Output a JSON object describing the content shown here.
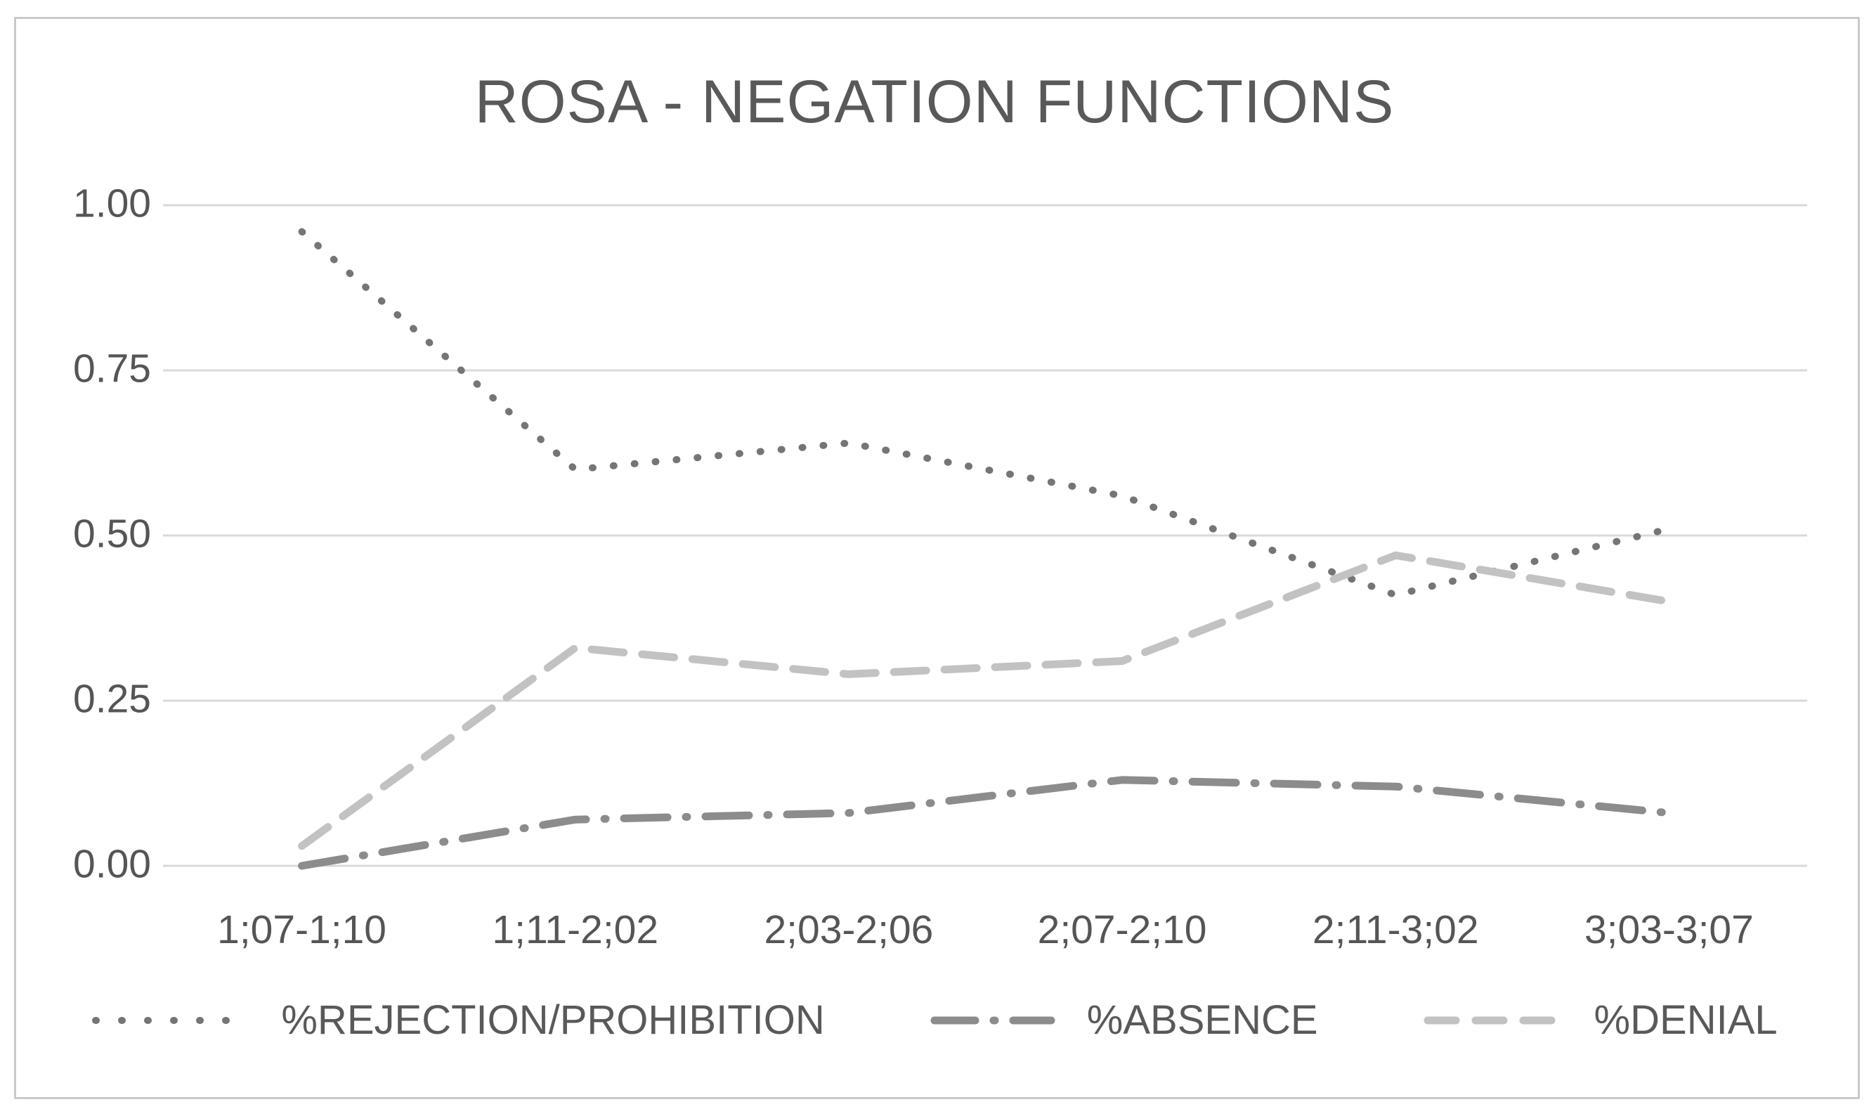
{
  "title": "ROSA - NEGATION FUNCTIONS",
  "colors": {
    "title_text": "#595959",
    "axis_text": "#555555",
    "gridline": "#d9d9d9",
    "frame_border": "#c9c9c9",
    "background": "#ffffff"
  },
  "chart_data": {
    "type": "line",
    "title": "ROSA - NEGATION FUNCTIONS",
    "categories": [
      "1;07-1;10",
      "1;11-2;02",
      "2;03-2;06",
      "2;07-2;10",
      "2;11-3;02",
      "3;03-3;07"
    ],
    "series": [
      {
        "key": "rejection-prohibition",
        "name": "%REJECTION/PROHIBITION",
        "color": "#757575",
        "dash": "dotted",
        "values": [
          0.96,
          0.6,
          0.64,
          0.56,
          0.41,
          0.51
        ]
      },
      {
        "key": "absence",
        "name": "%ABSENCE",
        "color": "#8c8c8c",
        "dash": "dash-dot",
        "values": [
          0.0,
          0.07,
          0.08,
          0.13,
          0.12,
          0.08
        ]
      },
      {
        "key": "denial",
        "name": "%DENIAL",
        "color": "#c2c2c2",
        "dash": "dashed",
        "values": [
          0.03,
          0.33,
          0.29,
          0.31,
          0.47,
          0.4
        ]
      }
    ],
    "y_ticks": [
      "1.00",
      "0.75",
      "0.50",
      "0.25",
      "0.00"
    ],
    "y_tick_values": [
      1.0,
      0.75,
      0.5,
      0.25,
      0.0
    ],
    "ylim": [
      0,
      1
    ],
    "xlabel": "",
    "ylabel": "",
    "grid": true,
    "legend_position": "bottom"
  }
}
